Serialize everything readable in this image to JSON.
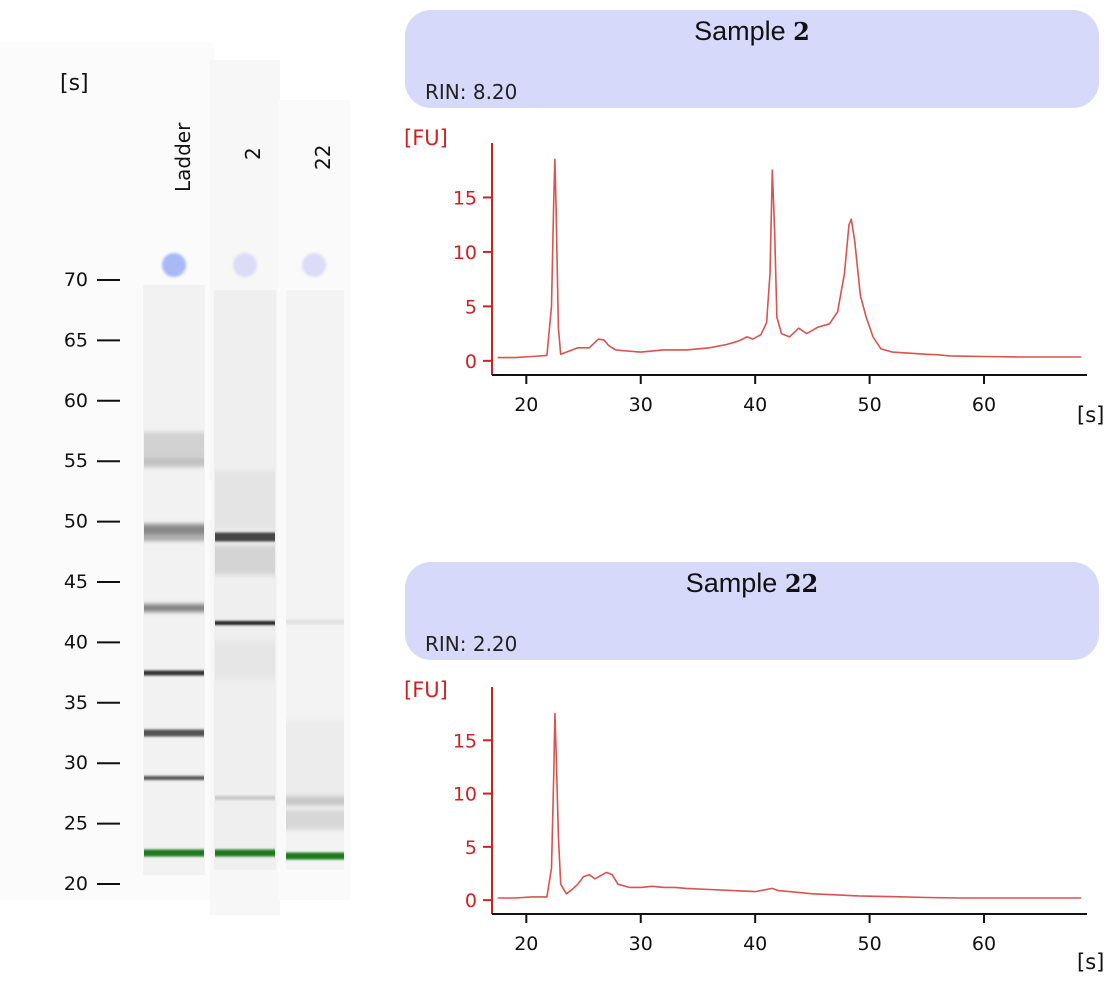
{
  "gel": {
    "unit_label": "[s]",
    "lanes": [
      {
        "label": "Ladder"
      },
      {
        "label": "2"
      },
      {
        "label": "22"
      }
    ],
    "y_ticks": [
      "70",
      "65",
      "60",
      "55",
      "50",
      "45",
      "40",
      "35",
      "30",
      "25",
      "20"
    ],
    "colors": {
      "marker": "#1f7a1f",
      "well_ladder": "#a9b9f5",
      "well_sample": "#dcdcf8"
    }
  },
  "chart_data": [
    {
      "type": "line",
      "title": "Sample 2",
      "title_prefix": "Sample",
      "sample_number": "2",
      "rin_text": "RIN: 8.20",
      "ylabel": "[FU]",
      "xlabel": "[s]",
      "xlim": [
        17,
        69
      ],
      "ylim": [
        -1.3,
        20
      ],
      "x_ticks": [
        20,
        30,
        40,
        50,
        60
      ],
      "y_ticks": [
        0,
        5,
        10,
        15
      ],
      "color": "#d9534f",
      "series": [
        {
          "x": [
            17.5,
            19,
            20.5,
            21.8,
            22.2,
            22.4,
            22.5,
            22.6,
            22.8,
            23,
            23.5,
            24.5,
            25.5,
            26.3,
            26.8,
            27.2,
            27.8,
            28.8,
            30,
            32,
            34,
            36,
            37.5,
            38.5,
            39.3,
            39.8,
            40.5,
            41,
            41.3,
            41.5,
            41.7,
            41.9,
            42.3,
            43,
            43.8,
            44.5,
            45.5,
            46.5,
            47.2,
            47.8,
            48.2,
            48.4,
            48.7,
            49.2,
            49.7,
            50.3,
            51,
            52,
            53.5,
            55,
            56,
            57,
            60,
            63,
            66,
            68.5
          ],
          "y": [
            0.3,
            0.3,
            0.4,
            0.5,
            5,
            15,
            18.5,
            14,
            3,
            0.6,
            0.8,
            1.2,
            1.2,
            2,
            1.9,
            1.4,
            1,
            0.9,
            0.8,
            1.0,
            1.0,
            1.2,
            1.5,
            1.8,
            2.2,
            2.0,
            2.4,
            3.5,
            8,
            17.5,
            12,
            4,
            2.5,
            2.2,
            3.0,
            2.5,
            3.1,
            3.4,
            4.5,
            8,
            12.5,
            13,
            11,
            6,
            4,
            2.2,
            1.1,
            0.8,
            0.7,
            0.6,
            0.55,
            0.45,
            0.4,
            0.35,
            0.35,
            0.35
          ]
        }
      ]
    },
    {
      "type": "line",
      "title": "Sample 22",
      "title_prefix": "Sample",
      "sample_number": "22",
      "rin_text": "RIN: 2.20",
      "ylabel": "[FU]",
      "xlabel": "[s]",
      "xlim": [
        17,
        69
      ],
      "ylim": [
        -1.3,
        20
      ],
      "x_ticks": [
        20,
        30,
        40,
        50,
        60
      ],
      "y_ticks": [
        0,
        5,
        10,
        15
      ],
      "color": "#d9534f",
      "series": [
        {
          "x": [
            17.5,
            19,
            20.5,
            21.8,
            22.2,
            22.4,
            22.5,
            22.6,
            22.8,
            23,
            23.5,
            24,
            24.5,
            25,
            25.5,
            26,
            26.5,
            27,
            27.5,
            28,
            29,
            30,
            31,
            32,
            33,
            34,
            36,
            38,
            40,
            41.5,
            42,
            43,
            45,
            47,
            49,
            51,
            53,
            55,
            58,
            61,
            64,
            68.5
          ],
          "y": [
            0.2,
            0.2,
            0.3,
            0.3,
            3,
            12,
            17.5,
            14,
            6,
            1.5,
            0.6,
            1.0,
            1.5,
            2.2,
            2.4,
            2.0,
            2.3,
            2.6,
            2.4,
            1.5,
            1.2,
            1.2,
            1.3,
            1.2,
            1.2,
            1.1,
            1.0,
            0.9,
            0.8,
            1.1,
            0.9,
            0.8,
            0.6,
            0.5,
            0.4,
            0.35,
            0.3,
            0.25,
            0.2,
            0.2,
            0.2,
            0.2
          ]
        }
      ]
    }
  ]
}
